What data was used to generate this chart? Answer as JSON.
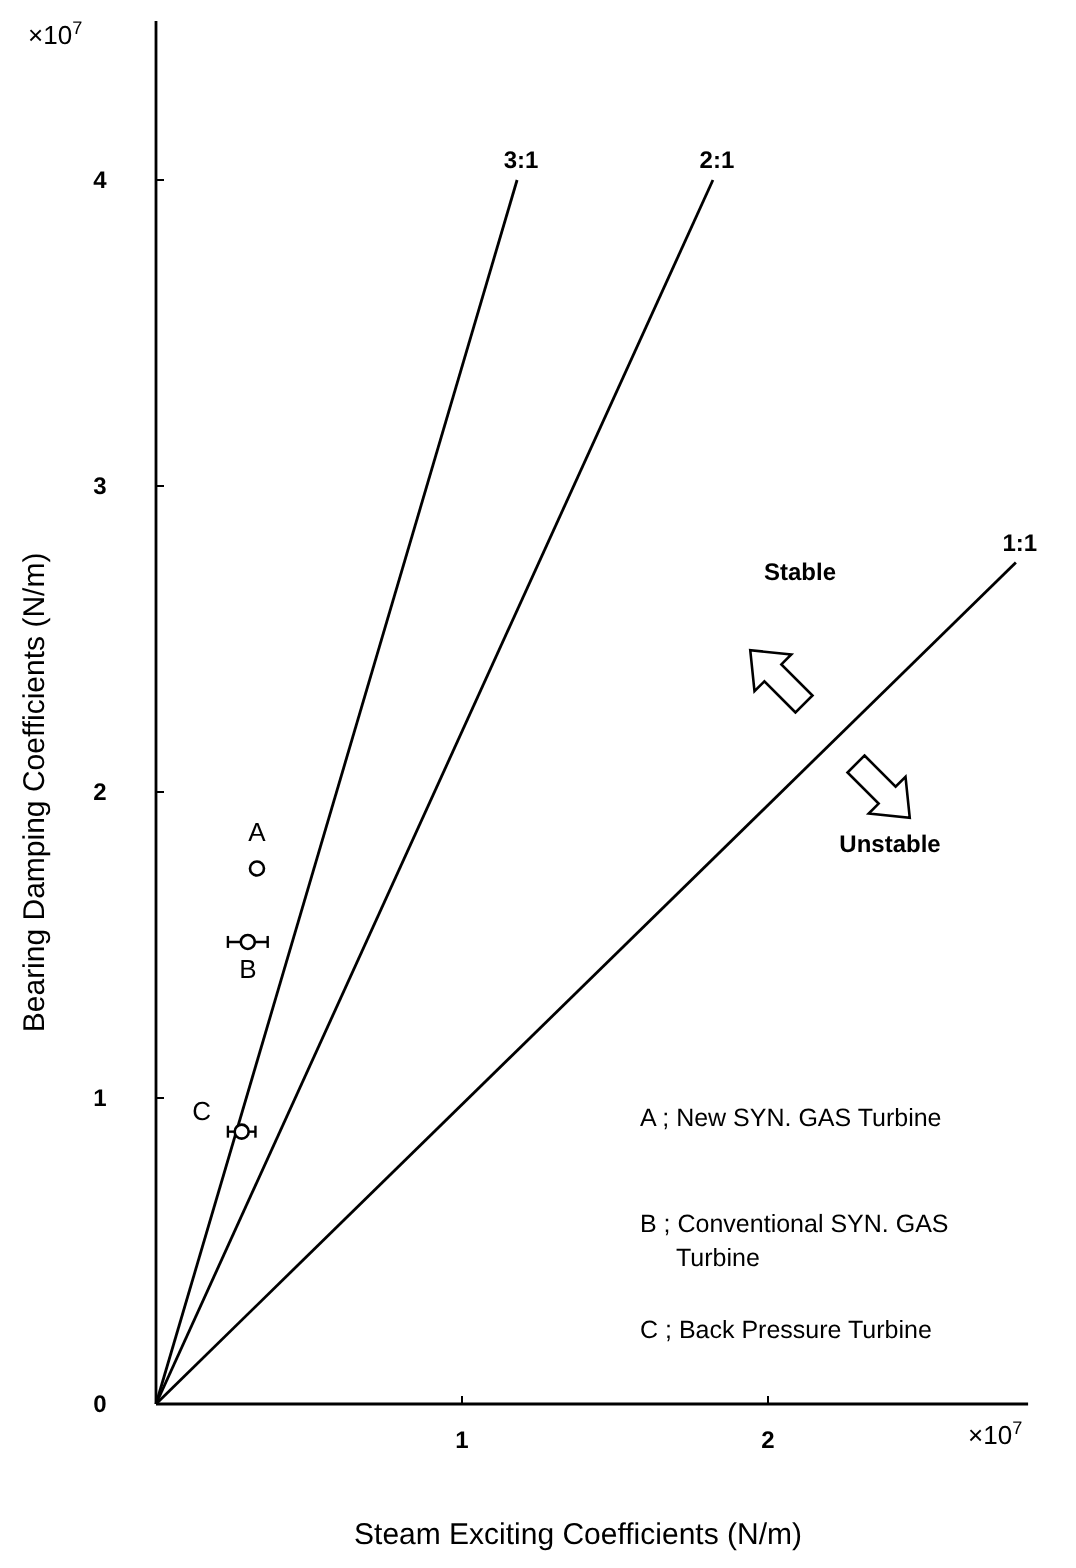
{
  "chart_data": {
    "type": "line",
    "xlabel": "Steam Exciting Coefficients (N/m)",
    "ylabel": "Bearing Damping Coefficients (N/m)",
    "xlim": [
      0,
      2.85
    ],
    "ylim": [
      0,
      4.52
    ],
    "xticks": [
      {
        "value": 0,
        "label": null
      },
      1,
      2
    ],
    "yticks": [
      0,
      1,
      2,
      3,
      4
    ],
    "grid": false,
    "series": [
      {
        "name": "3:1",
        "color": "#000000",
        "x": [
          0,
          1.18
        ],
        "values": [
          0,
          4.0
        ]
      },
      {
        "name": "2:1",
        "color": "#000000",
        "x": [
          0,
          1.82
        ],
        "values": [
          0,
          4.0
        ]
      },
      {
        "name": "1:1",
        "color": "#000000",
        "x": [
          0,
          2.81
        ],
        "values": [
          0,
          2.75
        ]
      },
      {
        "type": "scatter",
        "color": "#000000",
        "marker": "circle",
        "x": [
          0.33,
          0.3,
          0.28
        ],
        "values": [
          1.75,
          1.51,
          0.89
        ],
        "xerrors": [
          null,
          0.065,
          0.045
        ]
      }
    ],
    "annotations": [
      {
        "text": "A",
        "x": 0.33,
        "y": 1.75
      },
      {
        "text": "B",
        "x": 0.3,
        "y": 1.51
      },
      {
        "text": "C",
        "x": 0.28,
        "y": 0.89
      },
      "×10$^{7}$",
      "×10$^{7}$",
      "Stable",
      "Unstable",
      "A ; New SYN. GAS Turbine",
      "B ; Conventional SYN. GAS Turbine",
      "C ; Back Pressure Turbine"
    ]
  }
}
